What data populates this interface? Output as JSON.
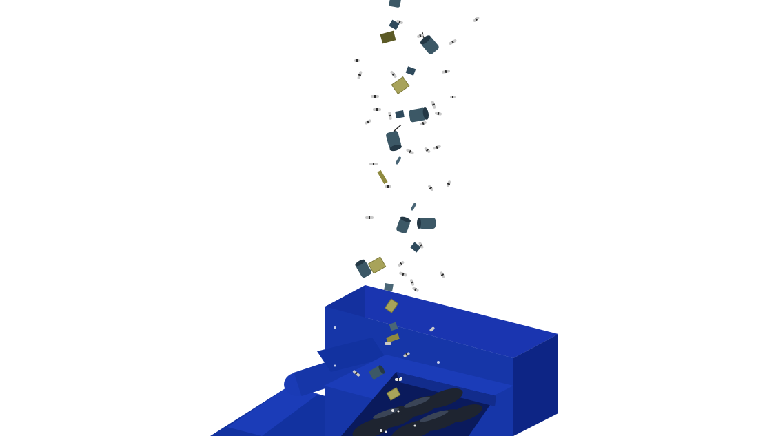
{
  "scene": {
    "subject": "shredder-feeding-electronic-components",
    "palette": {
      "background": "#ffffff",
      "machine_top": "#1a35b0",
      "machine_front": "#0f2a8f",
      "machine_side": "#0a1f73",
      "machine_dark": "#0a1a5c",
      "cutter_blades": "#1e2430",
      "capacitor_body": "#3c5866",
      "capacitor_cap": "#243845",
      "pcb_board": "#7d7a3a",
      "pcb_board_light": "#a8a35a",
      "resistor_body": "#c9c9c9",
      "resistor_band": "#2a2a2a"
    }
  }
}
